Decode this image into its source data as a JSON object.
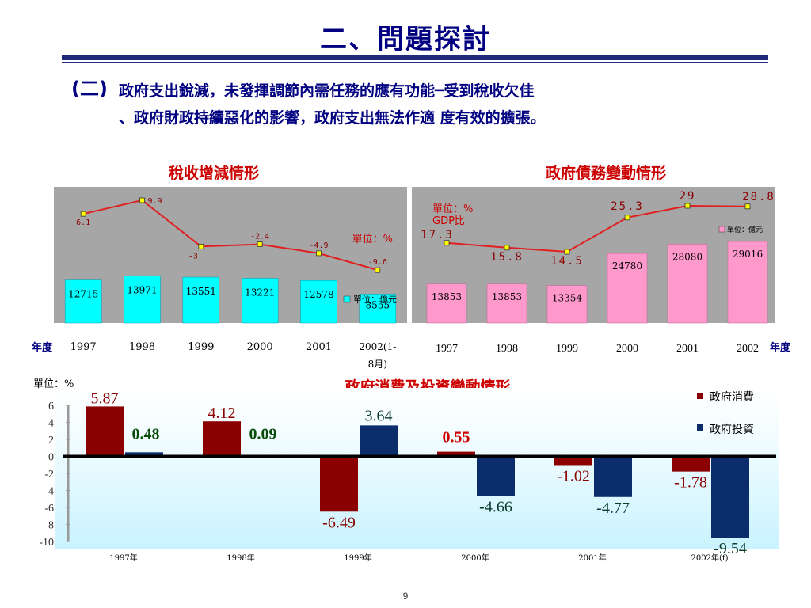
{
  "page": {
    "title": "二、問題探討",
    "heading_prefix": "(二)",
    "heading_line1": "政府支出銳減，未發揮調節內需任務的應有功能─受到稅收欠佳",
    "heading_line2": "、政府財政持續惡化的影響，政府支出無法作適 度有效的擴張。",
    "slide_number": "9"
  },
  "colors": {
    "navy": "#000080",
    "red": "#cc0000",
    "cyan_bar": "#00ffff",
    "pink_bar": "#ff99cc",
    "line_red": "#e02020",
    "marker_yellow": "#ffff00",
    "consumption": "#8b0000",
    "investment": "#0b2d6b",
    "panel_gray": "#a6a6a6"
  },
  "labels": {
    "year_axis_left": "年度",
    "year_axis_right": "年度"
  },
  "chart_data": [
    {
      "type": "bar",
      "title": "稅收增減情形",
      "categories": [
        "1997",
        "1998",
        "1999",
        "2000",
        "2001",
        "2002(1-8月)"
      ],
      "series": [
        {
          "name": "單位：億元",
          "values": [
            12715,
            13971,
            13551,
            13221,
            12578,
            8555
          ]
        }
      ],
      "line_series": {
        "values": [
          6.1,
          9.9,
          -3,
          -2.4,
          -4.9,
          -9.6
        ],
        "labels": [
          "6.1",
          "9.9",
          "-3",
          "-2.4",
          "-4.9",
          "-9.6"
        ]
      },
      "unit_note": "單位：%",
      "bar_labels": [
        "12715",
        "13971",
        "13551",
        "13221",
        "12578",
        "8555"
      ],
      "legend_placement": "right"
    },
    {
      "type": "bar",
      "title": "政府債務變動情形",
      "categories": [
        "1997",
        "1998",
        "1999",
        "2000",
        "2001",
        "2002"
      ],
      "series": [
        {
          "name": "單位：億元",
          "values": [
            13853,
            13853,
            13354,
            24780,
            28080,
            29016
          ]
        }
      ],
      "line_series": {
        "values": [
          17.3,
          15.8,
          14.5,
          25.3,
          29,
          28.8
        ],
        "labels": [
          "17.3",
          "15.8",
          "14.5",
          "25.3",
          "29",
          "28.8"
        ]
      },
      "unit_note": "單位：%",
      "unit_note2": "GDP比",
      "bar_labels": [
        "13853",
        "13853",
        "13354",
        "24780",
        "28080",
        "29016"
      ],
      "legend_placement": "top-right"
    },
    {
      "type": "bar",
      "title": "政府消費及投資變動情形",
      "ylabel": "單位：%",
      "categories": [
        "1997年",
        "1998年",
        "1999年",
        "2000年",
        "2001年",
        "2002年(f)"
      ],
      "series": [
        {
          "name": "政府消費",
          "values": [
            5.87,
            4.12,
            -6.49,
            0.55,
            -1.02,
            -1.78
          ]
        },
        {
          "name": "政府投資",
          "values": [
            0.48,
            0.09,
            3.64,
            -4.66,
            -4.77,
            -9.54
          ]
        }
      ],
      "value_labels": {
        "consumption": [
          "5.87",
          "4.12",
          "-6.49",
          "0.55",
          "-1.02",
          "-1.78"
        ],
        "investment": [
          "0.48",
          "0.09",
          "3.64",
          "-4.66",
          "-4.77",
          "-9.54"
        ]
      },
      "yticks": [
        "6",
        "4",
        "2",
        "0",
        "-2",
        "-4",
        "-6",
        "-8",
        "-10"
      ],
      "ylim": [
        -10,
        6
      ],
      "legend_placement": "top-right"
    }
  ]
}
